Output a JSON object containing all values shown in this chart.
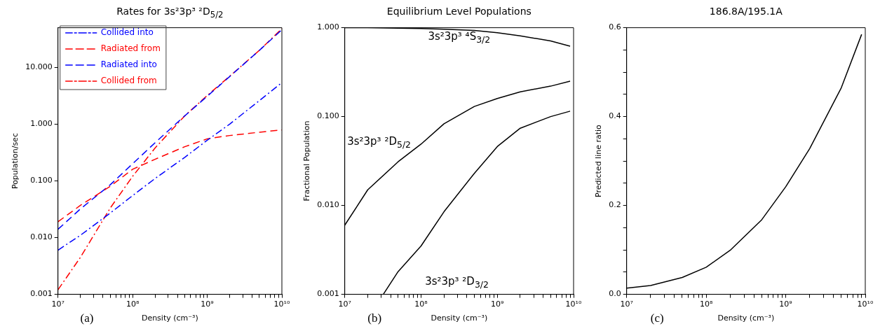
{
  "chart_data": [
    {
      "type": "line",
      "title": "Rates for 3s²3p³ ²D$_{5/2}$",
      "xlabel": "Density (cm⁻³)",
      "ylabel": "Population/sec",
      "annotations": [
        "(a)"
      ],
      "log": "xy",
      "legend": "top left",
      "grid": false,
      "x": [
        10000000,
        20000000,
        50000000,
        100000000,
        200000000,
        500000000,
        1000000000,
        2000000000,
        5000000000,
        10000000000
      ],
      "xlim": [
        10000000,
        10000000000
      ],
      "xticks": [
        {
          "value": 10000000,
          "label": "10⁷"
        },
        {
          "value": 20000000,
          "label": null
        },
        {
          "value": 30000000,
          "label": null
        },
        {
          "value": 40000000,
          "label": null
        },
        {
          "value": 50000000,
          "label": null
        },
        {
          "value": 60000000,
          "label": null
        },
        {
          "value": 70000000,
          "label": null
        },
        {
          "value": 80000000,
          "label": null
        },
        {
          "value": 90000000,
          "label": null
        },
        {
          "value": 100000000,
          "label": "10⁸"
        },
        {
          "value": 200000000,
          "label": null
        },
        {
          "value": 300000000,
          "label": null
        },
        {
          "value": 400000000,
          "label": null
        },
        {
          "value": 500000000,
          "label": null
        },
        {
          "value": 600000000,
          "label": null
        },
        {
          "value": 700000000,
          "label": null
        },
        {
          "value": 800000000,
          "label": null
        },
        {
          "value": 900000000,
          "label": null
        },
        {
          "value": 1000000000,
          "label": "10⁹"
        },
        {
          "value": 2000000000,
          "label": null
        },
        {
          "value": 3000000000,
          "label": null
        },
        {
          "value": 4000000000,
          "label": null
        },
        {
          "value": 5000000000,
          "label": null
        },
        {
          "value": 6000000000,
          "label": null
        },
        {
          "value": 7000000000,
          "label": null
        },
        {
          "value": 8000000000,
          "label": null
        },
        {
          "value": 9000000000,
          "label": null
        },
        {
          "value": 10000000000,
          "label": "10¹⁰"
        }
      ],
      "ylim": [
        0.001,
        50
      ],
      "yticks": [
        0.001,
        {
          "value": 0.01,
          "label": "0.010"
        },
        {
          "value": 0.1,
          "label": "0.100"
        },
        {
          "value": 1,
          "label": "1.000"
        },
        {
          "value": 10,
          "label": "10.000"
        }
      ],
      "series": [
        {
          "name": "Collided into",
          "color": "#0000ff",
          "line_style": "dashdot",
          "values": [
            0.006,
            0.011,
            0.027,
            0.055,
            0.11,
            0.26,
            0.52,
            1.0,
            2.6,
            5.4
          ]
        },
        {
          "name": "Radiated from",
          "color": "#ff0000",
          "line_style": "dashed",
          "values": [
            0.019,
            0.037,
            0.08,
            0.16,
            0.24,
            0.4,
            0.55,
            0.63,
            0.72,
            0.79
          ]
        },
        {
          "name": "Radiated into",
          "color": "#0000ff",
          "line_style": "dashed",
          "values": [
            0.014,
            0.032,
            0.085,
            0.2,
            0.47,
            1.4,
            3.1,
            6.9,
            20,
            46
          ]
        },
        {
          "name": "Collided from",
          "color": "#ff0000",
          "line_style": "dashdot",
          "values": [
            0.0012,
            0.0045,
            0.033,
            0.12,
            0.38,
            1.4,
            3.2,
            7,
            20,
            48
          ]
        }
      ]
    },
    {
      "type": "line",
      "title": "Equilibrium Level Populations",
      "xlabel": "Density (cm⁻³)",
      "ylabel": "Fractional Population",
      "annotations": [
        "(b)"
      ],
      "log": "xy",
      "grid": false,
      "x": [
        10000000,
        20000000,
        50000000,
        100000000,
        200000000,
        500000000,
        1000000000,
        2000000000,
        5000000000,
        9000000000
      ],
      "xlim": [
        10000000,
        10000000000
      ],
      "xticks": [
        {
          "value": 10000000,
          "label": "10⁷"
        },
        {
          "value": 20000000,
          "label": null
        },
        {
          "value": 30000000,
          "label": null
        },
        {
          "value": 40000000,
          "label": null
        },
        {
          "value": 50000000,
          "label": null
        },
        {
          "value": 60000000,
          "label": null
        },
        {
          "value": 70000000,
          "label": null
        },
        {
          "value": 80000000,
          "label": null
        },
        {
          "value": 90000000,
          "label": null
        },
        {
          "value": 100000000,
          "label": "10⁸"
        },
        {
          "value": 200000000,
          "label": null
        },
        {
          "value": 300000000,
          "label": null
        },
        {
          "value": 400000000,
          "label": null
        },
        {
          "value": 500000000,
          "label": null
        },
        {
          "value": 600000000,
          "label": null
        },
        {
          "value": 700000000,
          "label": null
        },
        {
          "value": 800000000,
          "label": null
        },
        {
          "value": 900000000,
          "label": null
        },
        {
          "value": 1000000000,
          "label": "10⁹"
        },
        {
          "value": 2000000000,
          "label": null
        },
        {
          "value": 3000000000,
          "label": null
        },
        {
          "value": 4000000000,
          "label": null
        },
        {
          "value": 5000000000,
          "label": null
        },
        {
          "value": 6000000000,
          "label": null
        },
        {
          "value": 7000000000,
          "label": null
        },
        {
          "value": 8000000000,
          "label": null
        },
        {
          "value": 9000000000,
          "label": null
        },
        {
          "value": 10000000000,
          "label": "10¹⁰"
        }
      ],
      "ylim": [
        0.001,
        1
      ],
      "yticks": [
        0.001,
        {
          "value": 0.01,
          "label": "0.010"
        },
        {
          "value": 0.1,
          "label": "0.100"
        },
        {
          "value": 1,
          "label": "1.000"
        }
      ],
      "series": [
        {
          "name": "3s²3p³ ⁴S$_{3/2}$",
          "color": "#000000",
          "values": [
            1.0,
            1.0,
            0.99,
            0.98,
            0.96,
            0.93,
            0.88,
            0.81,
            0.71,
            0.62
          ]
        },
        {
          "name": "3s²3p³ ²D$_{5/2}$",
          "color": "#000000",
          "values": [
            0.006,
            0.015,
            0.031,
            0.049,
            0.083,
            0.13,
            0.16,
            0.19,
            0.22,
            0.25
          ]
        },
        {
          "name": "3s²3p³ ²D$_{3/2}$",
          "color": "#000000",
          "x": [
            32000000,
            50000000,
            100000000,
            200000000,
            500000000,
            1000000000,
            2000000000,
            5000000000,
            9000000000
          ],
          "values": [
            0.001,
            0.0018,
            0.0035,
            0.0085,
            0.023,
            0.046,
            0.074,
            0.1,
            0.115
          ]
        }
      ]
    },
    {
      "type": "line",
      "title": "186.8A/195.1A",
      "xlabel": "Density (cm⁻³)",
      "ylabel": "Predicted line ratio",
      "annotations": [
        "(c)"
      ],
      "log": "x",
      "grid": false,
      "x": [
        10000000,
        20000000,
        50000000,
        100000000,
        200000000,
        500000000,
        1000000000,
        2000000000,
        5000000000,
        9000000000
      ],
      "xlim": [
        10000000,
        10000000000
      ],
      "xticks": [
        {
          "value": 10000000,
          "label": "10⁷"
        },
        {
          "value": 20000000,
          "label": null
        },
        {
          "value": 30000000,
          "label": null
        },
        {
          "value": 40000000,
          "label": null
        },
        {
          "value": 50000000,
          "label": null
        },
        {
          "value": 60000000,
          "label": null
        },
        {
          "value": 70000000,
          "label": null
        },
        {
          "value": 80000000,
          "label": null
        },
        {
          "value": 90000000,
          "label": null
        },
        {
          "value": 100000000,
          "label": "10⁸"
        },
        {
          "value": 200000000,
          "label": null
        },
        {
          "value": 300000000,
          "label": null
        },
        {
          "value": 400000000,
          "label": null
        },
        {
          "value": 500000000,
          "label": null
        },
        {
          "value": 600000000,
          "label": null
        },
        {
          "value": 700000000,
          "label": null
        },
        {
          "value": 800000000,
          "label": null
        },
        {
          "value": 900000000,
          "label": null
        },
        {
          "value": 1000000000,
          "label": "10⁹"
        },
        {
          "value": 2000000000,
          "label": null
        },
        {
          "value": 3000000000,
          "label": null
        },
        {
          "value": 4000000000,
          "label": null
        },
        {
          "value": 5000000000,
          "label": null
        },
        {
          "value": 6000000000,
          "label": null
        },
        {
          "value": 7000000000,
          "label": null
        },
        {
          "value": 8000000000,
          "label": null
        },
        {
          "value": 9000000000,
          "label": null
        },
        {
          "value": 10000000000,
          "label": "10¹⁰"
        }
      ],
      "ylim": [
        0,
        0.6
      ],
      "yticks": [
        {
          "value": 0,
          "label": "0.0"
        },
        {
          "value": 0.05,
          "label": null
        },
        {
          "value": 0.1,
          "label": null
        },
        {
          "value": 0.15,
          "label": null
        },
        0.2,
        {
          "value": 0.25,
          "label": null
        },
        {
          "value": 0.3,
          "label": null
        },
        {
          "value": 0.35,
          "label": null
        },
        0.4,
        {
          "value": 0.45,
          "label": null
        },
        {
          "value": 0.5,
          "label": null
        },
        {
          "value": 0.55,
          "label": null
        },
        0.6
      ],
      "series": [
        {
          "color": "#000000",
          "values": [
            0.014,
            0.02,
            0.038,
            0.061,
            0.099,
            0.168,
            0.242,
            0.328,
            0.465,
            0.585
          ]
        }
      ]
    }
  ]
}
